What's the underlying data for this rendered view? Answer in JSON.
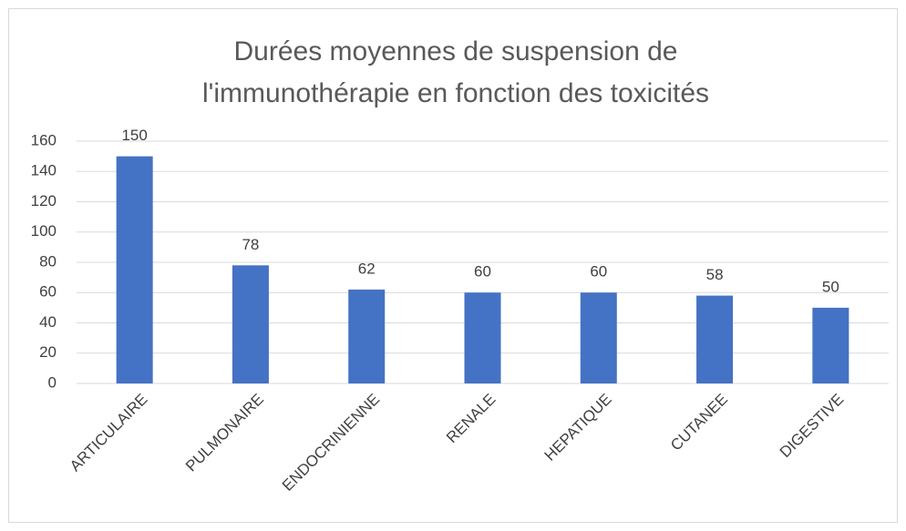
{
  "chart_data": {
    "type": "bar",
    "title": [
      "Durées moyennes de suspension de",
      "l'immunothérapie en fonction des toxicités"
    ],
    "categories": [
      "ARTICULAIRE",
      "PULMONAIRE",
      "ENDOCRINIENNE",
      "RENALE",
      "HEPATIQUE",
      "CUTANEE",
      "DIGESTIVE"
    ],
    "values": [
      150,
      78,
      62,
      60,
      60,
      58,
      50
    ],
    "color": "#4472c4",
    "ylim": [
      0,
      160
    ],
    "yticks": [
      0,
      20,
      40,
      60,
      80,
      100,
      120,
      140,
      160
    ],
    "grid": true
  }
}
